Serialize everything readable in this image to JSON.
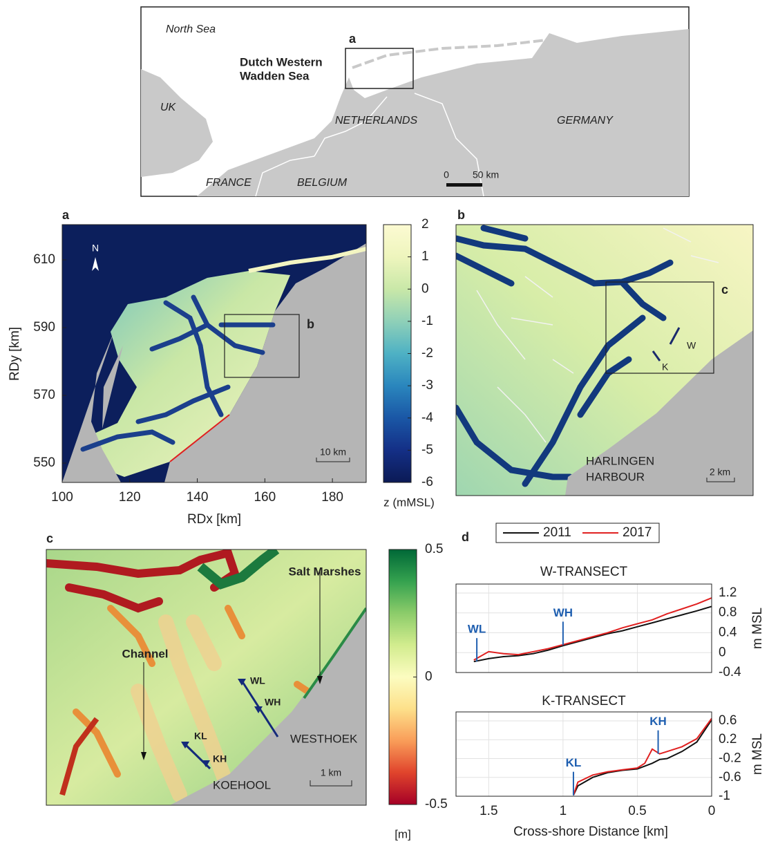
{
  "overview_map": {
    "labels": {
      "north_sea": "North Sea",
      "inset": "a",
      "region": [
        "Dutch Western",
        "Wadden Sea"
      ],
      "uk": "UK",
      "netherlands": "NETHERLANDS",
      "germany": "GERMANY",
      "france": "FRANCE",
      "belgium": "BELGIUM"
    },
    "scale": [
      "0",
      "50 km"
    ]
  },
  "panel_a": {
    "label": "a",
    "north": "N",
    "inset": "b",
    "scale": "10 km",
    "xlabel": "RDx [km]",
    "ylabel": "RDy [km]",
    "xlim": [
      100,
      190
    ],
    "ylim": [
      544.3,
      620.4
    ],
    "xticks": [
      100,
      120,
      140,
      160,
      180
    ],
    "yticks": [
      550,
      570,
      590,
      610
    ]
  },
  "colorbar_a": {
    "label": "z (mMSL)",
    "lim": [
      -6,
      2
    ],
    "ticks": [
      2,
      1,
      0,
      -1,
      -2,
      -3,
      -4,
      -5,
      -6
    ],
    "colors": [
      "#0b1a55",
      "#142f86",
      "#1a57a6",
      "#2a86bd",
      "#4eb1c4",
      "#8fd0b8",
      "#c9e8a8",
      "#eef5bd",
      "#fcfad2"
    ]
  },
  "panel_b": {
    "label": "b",
    "inset": "c",
    "transects": [
      "W",
      "K"
    ],
    "harbour": [
      "HARLINGEN",
      "HARBOUR"
    ],
    "scale": "2 km"
  },
  "panel_c": {
    "label": "c",
    "scale": "1 km",
    "labels": {
      "salt_marshes": "Salt Marshes",
      "channel": "Channel",
      "points": [
        "WL",
        "WH",
        "KL",
        "KH"
      ],
      "westhoek": "WESTHOEK",
      "koehool": "KOEHOOL"
    }
  },
  "colorbar_c": {
    "label": "[m]",
    "lim": [
      -0.5,
      0.5
    ],
    "ticks": [
      0.5,
      0,
      -0.5
    ],
    "colors": [
      "#a50026",
      "#e0442c",
      "#f99d59",
      "#fde08a",
      "#fcfcc0",
      "#d2ec8e",
      "#8ccc6a",
      "#35a24f",
      "#006837"
    ]
  },
  "panel_d_label": "d",
  "chart_data": [
    {
      "type": "line",
      "title": "W-TRANSECT",
      "ylabel": "m MSL",
      "x": [
        1.6,
        1.5,
        1.4,
        1.3,
        1.2,
        1.1,
        1.0,
        0.9,
        0.8,
        0.7,
        0.6,
        0.5,
        0.4,
        0.3,
        0.2,
        0.1,
        0
      ],
      "series": [
        {
          "name": "2011",
          "color": "#111111",
          "values": [
            -0.18,
            -0.12,
            -0.08,
            -0.06,
            -0.02,
            0.05,
            0.14,
            0.22,
            0.3,
            0.38,
            0.44,
            0.52,
            0.6,
            0.68,
            0.76,
            0.84,
            0.93
          ]
        },
        {
          "name": "2017",
          "color": "#e02020",
          "values": [
            -0.15,
            0.02,
            -0.02,
            -0.04,
            0.02,
            0.08,
            0.16,
            0.24,
            0.32,
            0.4,
            0.5,
            0.58,
            0.66,
            0.78,
            0.88,
            0.98,
            1.1
          ]
        }
      ],
      "annotations": [
        {
          "label": "WL",
          "x": 1.58,
          "y": -0.18
        },
        {
          "label": "WH",
          "x": 1.0,
          "y": 0.15
        }
      ],
      "annotation_color": "#1f5fb0",
      "xlim": [
        1.72,
        0
      ],
      "ylim": [
        -0.4,
        1.38
      ],
      "xticks": [
        1.5,
        1,
        0.5,
        0
      ],
      "yticks": [
        1.2,
        0.8,
        0.4,
        0,
        -0.4
      ],
      "grid": true
    },
    {
      "type": "line",
      "title": "K-TRANSECT",
      "ylabel": "m MSL",
      "xlabel": "Cross-shore Distance [km]",
      "x": [
        0.93,
        0.9,
        0.8,
        0.7,
        0.6,
        0.5,
        0.45,
        0.4,
        0.35,
        0.3,
        0.2,
        0.1,
        0
      ],
      "series": [
        {
          "color": "#111111",
          "values": [
            -0.98,
            -0.78,
            -0.6,
            -0.5,
            -0.45,
            -0.42,
            -0.36,
            -0.3,
            -0.22,
            -0.2,
            -0.05,
            0.15,
            0.62
          ]
        },
        {
          "color": "#e02020",
          "values": [
            -0.98,
            -0.7,
            -0.55,
            -0.48,
            -0.44,
            -0.4,
            -0.3,
            0.0,
            -0.1,
            -0.05,
            0.05,
            0.22,
            0.65
          ]
        }
      ],
      "annotations": [
        {
          "label": "KL",
          "x": 0.93,
          "y": -0.98
        },
        {
          "label": "KH",
          "x": 0.36,
          "y": -0.1
        }
      ],
      "annotation_color": "#1f5fb0",
      "xlim": [
        1.72,
        0
      ],
      "ylim": [
        -1,
        0.79
      ],
      "xticks": [
        1.5,
        1,
        0.5,
        0
      ],
      "yticks": [
        0.6,
        0.2,
        -0.2,
        -0.6,
        -1
      ],
      "grid": true
    }
  ]
}
